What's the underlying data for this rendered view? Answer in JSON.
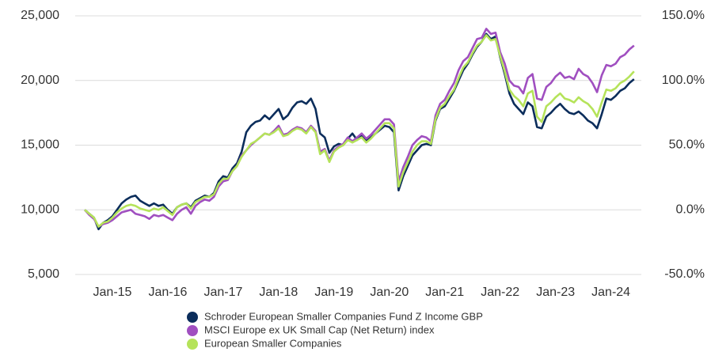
{
  "chart_data": {
    "type": "line",
    "categories": [
      null,
      null,
      null,
      null,
      null,
      null,
      "Jan-15",
      null,
      null,
      null,
      null,
      null,
      null,
      null,
      null,
      null,
      null,
      null,
      "Jan-16",
      null,
      null,
      null,
      null,
      null,
      null,
      null,
      null,
      null,
      null,
      null,
      "Jan-17",
      null,
      null,
      null,
      null,
      null,
      null,
      null,
      null,
      null,
      null,
      null,
      "Jan-18",
      null,
      null,
      null,
      null,
      null,
      null,
      null,
      null,
      null,
      null,
      null,
      "Jan-19",
      null,
      null,
      null,
      null,
      null,
      null,
      null,
      null,
      null,
      null,
      null,
      "Jan-20",
      null,
      null,
      null,
      null,
      null,
      null,
      null,
      null,
      null,
      null,
      null,
      "Jan-21",
      null,
      null,
      null,
      null,
      null,
      null,
      null,
      null,
      null,
      null,
      null,
      "Jan-22",
      null,
      null,
      null,
      null,
      null,
      null,
      null,
      null,
      null,
      null,
      null,
      "Jan-23",
      null,
      null,
      null,
      null,
      null,
      null,
      null,
      null,
      null,
      null,
      null,
      "Jan-24",
      null,
      null,
      null,
      null,
      null
    ],
    "series": [
      {
        "name": "Schroder European Smaller Companies Fund Z Income GBP",
        "color": "#0b2d5b",
        "values": [
          10000,
          9700,
          9400,
          8500,
          9000,
          9200,
          9500,
          10000,
          10500,
          10800,
          11000,
          11100,
          10700,
          10500,
          10300,
          10500,
          10300,
          10400,
          10000,
          9700,
          10200,
          10400,
          10500,
          10200,
          10700,
          10900,
          11100,
          11000,
          11300,
          12200,
          12600,
          12500,
          13200,
          13600,
          14500,
          16000,
          16500,
          16800,
          16900,
          17300,
          17000,
          17400,
          17800,
          17000,
          17300,
          17900,
          18300,
          18400,
          18200,
          18600,
          17800,
          15900,
          15600,
          14400,
          14900,
          15100,
          15000,
          15500,
          15900,
          15400,
          15800,
          15300,
          15600,
          15900,
          16200,
          16500,
          16400,
          16000,
          11500,
          12600,
          13400,
          14200,
          14600,
          15000,
          15100,
          15000,
          16900,
          17800,
          18000,
          18600,
          19200,
          20000,
          20800,
          21300,
          22000,
          22600,
          23000,
          23600,
          23200,
          23400,
          21800,
          20500,
          19000,
          18200,
          17800,
          17400,
          18300,
          18000,
          16400,
          16300,
          17200,
          17500,
          17900,
          18200,
          17800,
          17500,
          17400,
          17600,
          17300,
          16900,
          16700,
          16300,
          17400,
          18600,
          18500,
          18800,
          19200,
          19400,
          19800,
          20100
        ]
      },
      {
        "name": "MSCI Europe ex UK Small Cap (Net Return) index",
        "color": "#a04fc0",
        "values": [
          10000,
          9600,
          9300,
          8700,
          8900,
          9000,
          9200,
          9500,
          9800,
          9900,
          10000,
          9700,
          9600,
          9500,
          9300,
          9600,
          9500,
          9600,
          9400,
          9200,
          9700,
          10000,
          10200,
          9700,
          10300,
          10600,
          10800,
          10700,
          11000,
          11800,
          12200,
          12300,
          13000,
          13400,
          14200,
          14600,
          15000,
          15300,
          15600,
          15900,
          15800,
          16100,
          16500,
          15800,
          15900,
          16200,
          16400,
          16300,
          16000,
          16500,
          16100,
          14500,
          14700,
          13800,
          14600,
          14900,
          15100,
          15600,
          15300,
          15600,
          15900,
          15500,
          15800,
          16200,
          16600,
          17000,
          17000,
          16600,
          12200,
          13300,
          14100,
          15000,
          15400,
          15700,
          15600,
          15300,
          17300,
          18200,
          18500,
          19200,
          19800,
          20800,
          21500,
          21800,
          22500,
          23200,
          23300,
          24000,
          23600,
          23700,
          22200,
          21300,
          20000,
          19600,
          19500,
          19000,
          20200,
          20500,
          18600,
          18500,
          19500,
          19800,
          20300,
          20600,
          20200,
          20300,
          20100,
          20900,
          20500,
          20300,
          19800,
          19100,
          20400,
          21200,
          21100,
          21300,
          21800,
          22000,
          22400,
          22700
        ]
      },
      {
        "name": "European Smaller Companies",
        "color": "#b5e35a",
        "values": [
          10000,
          9700,
          9400,
          8700,
          9000,
          9100,
          9400,
          9800,
          10100,
          10300,
          10400,
          10300,
          10100,
          10000,
          9900,
          10100,
          10000,
          10200,
          9900,
          9600,
          10200,
          10400,
          10500,
          10100,
          10600,
          10800,
          11000,
          11000,
          11200,
          12000,
          12400,
          12400,
          13000,
          13400,
          14100,
          14600,
          15100,
          15300,
          15600,
          15900,
          15800,
          16000,
          16300,
          15700,
          15800,
          16100,
          16300,
          16200,
          15900,
          16400,
          16000,
          14300,
          14600,
          13700,
          14500,
          14800,
          15000,
          15400,
          15200,
          15400,
          15600,
          15200,
          15500,
          15900,
          16300,
          16700,
          16700,
          16300,
          11800,
          12900,
          13700,
          14500,
          15000,
          15300,
          15300,
          15100,
          17000,
          17900,
          18200,
          18800,
          19300,
          20200,
          21000,
          21400,
          22100,
          22700,
          23000,
          23500,
          23100,
          23200,
          21900,
          20700,
          19300,
          18800,
          18500,
          18000,
          19000,
          19200,
          17200,
          16800,
          18000,
          18300,
          18700,
          19000,
          18600,
          18500,
          18300,
          18700,
          18400,
          18200,
          17800,
          17200,
          18300,
          19300,
          19200,
          19400,
          19800,
          20000,
          20300,
          20700
        ]
      }
    ],
    "ylim": [
      5000,
      25000
    ],
    "yticks": [
      {
        "value": 5000,
        "label": "5,000"
      },
      {
        "value": 10000,
        "label": "10,000"
      },
      {
        "value": 15000,
        "label": "15,000"
      },
      {
        "value": 20000,
        "label": "20,000"
      },
      {
        "value": 25000,
        "label": "25,000"
      }
    ],
    "y2lim": [
      -50,
      150
    ],
    "y2ticks": [
      {
        "value": -50,
        "label": "-50.0%"
      },
      {
        "value": 0,
        "label": "0.0%"
      },
      {
        "value": 50,
        "label": "50.0%"
      },
      {
        "value": 100,
        "label": "100.0%"
      },
      {
        "value": 150,
        "label": "150.0%"
      }
    ],
    "grid": true,
    "legend": "bottom"
  }
}
